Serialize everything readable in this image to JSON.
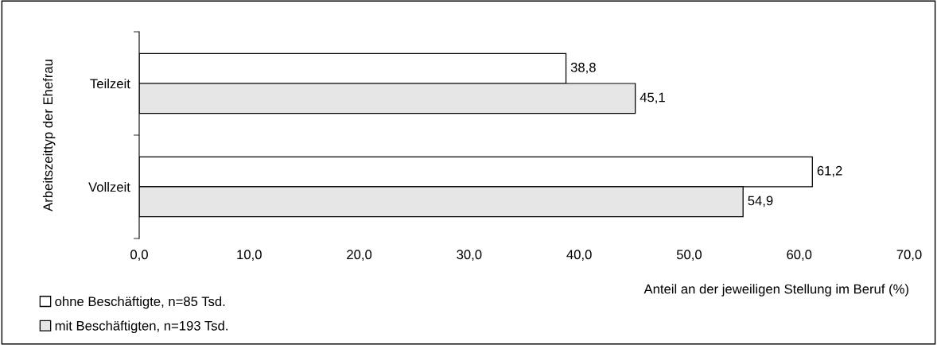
{
  "chart_data": {
    "type": "bar",
    "orientation": "horizontal",
    "ylabel": "Arbeitszeittyp der Ehefrau",
    "xlabel": "Anteil an der jeweiligen Stellung im Beruf (%)",
    "categories": [
      "Teilzeit",
      "Vollzeit"
    ],
    "series": [
      {
        "name": "ohne Beschäftigte, n=85 Tsd.",
        "color": "#ffffff",
        "values": [
          38.8,
          61.2
        ],
        "value_labels": [
          "38,8",
          "61,2"
        ]
      },
      {
        "name": "mit Beschäftigten, n=193 Tsd.",
        "color": "#e6e6e6",
        "values": [
          45.1,
          54.9
        ],
        "value_labels": [
          "45,1",
          "54,9"
        ]
      }
    ],
    "xlim": [
      0,
      70
    ],
    "xticks": [
      {
        "value": 0,
        "label": "0,0"
      },
      {
        "value": 10,
        "label": "10,0"
      },
      {
        "value": 20,
        "label": "20,0"
      },
      {
        "value": 30,
        "label": "30,0"
      },
      {
        "value": 40,
        "label": "40,0"
      },
      {
        "value": 50,
        "label": "50,0"
      },
      {
        "value": 60,
        "label": "60,0"
      },
      {
        "value": 70,
        "label": "70,0"
      }
    ],
    "grid": false,
    "legend": "bottom left"
  }
}
